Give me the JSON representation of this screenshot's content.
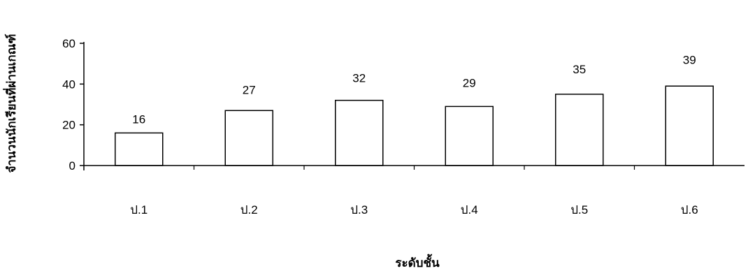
{
  "chart_data": {
    "type": "bar",
    "categories": [
      "ป.1",
      "ป.2",
      "ป.3",
      "ป.4",
      "ป.5",
      "ป.6"
    ],
    "values": [
      16,
      27,
      32,
      29,
      35,
      39
    ],
    "value_labels": [
      "16",
      "27",
      "32",
      "29",
      "35",
      "39"
    ],
    "title": "",
    "xlabel": "ระดับชั้น",
    "ylabel": "จำนวนนักเรียนที่ผ่านเกณฑ์",
    "ylim": [
      0,
      60
    ],
    "yticks": [
      "0",
      "20",
      "40",
      "60"
    ],
    "grid": false,
    "bar_fill": "#ffffff",
    "bar_stroke": "#000000"
  }
}
